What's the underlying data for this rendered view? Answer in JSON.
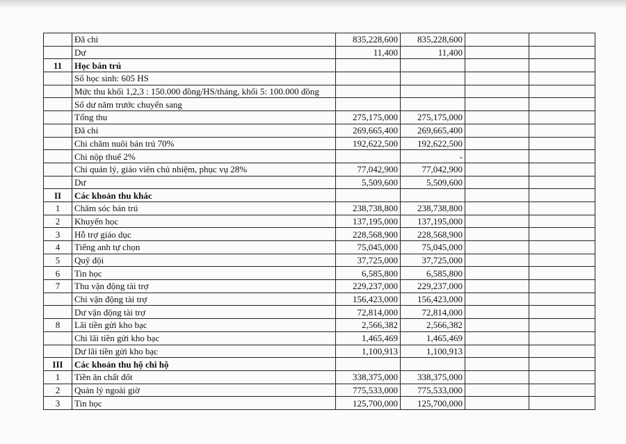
{
  "table": {
    "rows": [
      {
        "item": "Đã chi",
        "col3": "835,228,600",
        "col4": "835,228,600"
      },
      {
        "item": "Dư",
        "col3": "11,400",
        "col4": "11,400"
      },
      {
        "no": "11",
        "item": "Học bán trú",
        "bold": true
      },
      {
        "item": "Số học sinh: 605 HS"
      },
      {
        "item": "Mức thu khối 1,2,3 : 150.000 đồng/HS/tháng, khối 5: 100.000 đồng"
      },
      {
        "item": "Số dư năm trước chuyển sang"
      },
      {
        "item": "Tổng thu",
        "col3": "275,175,000",
        "col4": "275,175,000"
      },
      {
        "item": "Đã chi",
        "col3": "269,665,400",
        "col4": "269,665,400"
      },
      {
        "item": "Chi chăm nuôi bán trú 70%",
        "col3": "192,622,500",
        "col4": "192,622,500"
      },
      {
        "item": "Chi nộp thuế 2%",
        "col4": "-"
      },
      {
        "item": "Chi quản lý, giáo viên chủ nhiệm, phục vụ 28%",
        "col3": "77,042,900",
        "col4": "77,042,900"
      },
      {
        "item": "Dư",
        "col3": "5,509,600",
        "col4": "5,509,600"
      },
      {
        "no": "II",
        "item": "Các khoản thu khác",
        "bold": true
      },
      {
        "no": "1",
        "item": "Chăm sóc bán trú",
        "col3": "238,738,800",
        "col4": "238,738,800"
      },
      {
        "no": "2",
        "item": "Khuyến học",
        "col3": "137,195,000",
        "col4": "137,195,000"
      },
      {
        "no": "3",
        "item": "Hỗ trợ giáo dục",
        "col3": "228,568,900",
        "col4": "228,568,900"
      },
      {
        "no": "4",
        "item": "Tiếng anh tự chọn",
        "col3": "75,045,000",
        "col4": "75,045,000"
      },
      {
        "no": "5",
        "item": "Quỹ đội",
        "col3": "37,725,000",
        "col4": "37,725,000"
      },
      {
        "no": "6",
        "item": "Tin học",
        "col3": "6,585,800",
        "col4": "6,585,800"
      },
      {
        "no": "7",
        "item": "Thu vận động tài trợ",
        "col3": "229,237,000",
        "col4": "229,237,000"
      },
      {
        "item": "Chi vận động tài trợ",
        "col3": "156,423,000",
        "col4": "156,423,000"
      },
      {
        "item": "Dư vận động tài trợ",
        "col3": "72,814,000",
        "col4": "72,814,000"
      },
      {
        "no": "8",
        "item": "Lãi tiền gửi kho bạc",
        "col3": "2,566,382",
        "col4": "2,566,382"
      },
      {
        "item": "Chi lãi tiền gửi kho bạc",
        "col3": "1,465,469",
        "col4": "1,465,469"
      },
      {
        "item": "Dư lãi tiền gửi kho bạc",
        "col3": "1,100,913",
        "col4": "1,100,913"
      },
      {
        "no": "III",
        "item": "Các khoản thu hộ chi hộ",
        "bold": true
      },
      {
        "no": "1",
        "item": "Tiền ăn chất đốt",
        "col3": "338,375,000",
        "col4": "338,375,000"
      },
      {
        "no": "2",
        "item": "Quản lý ngoài giờ",
        "col3": "775,533,000",
        "col4": "775,533,000"
      },
      {
        "no": "3",
        "item": "Tin học",
        "col3": "125,700,000",
        "col4": "125,700,000"
      }
    ]
  }
}
